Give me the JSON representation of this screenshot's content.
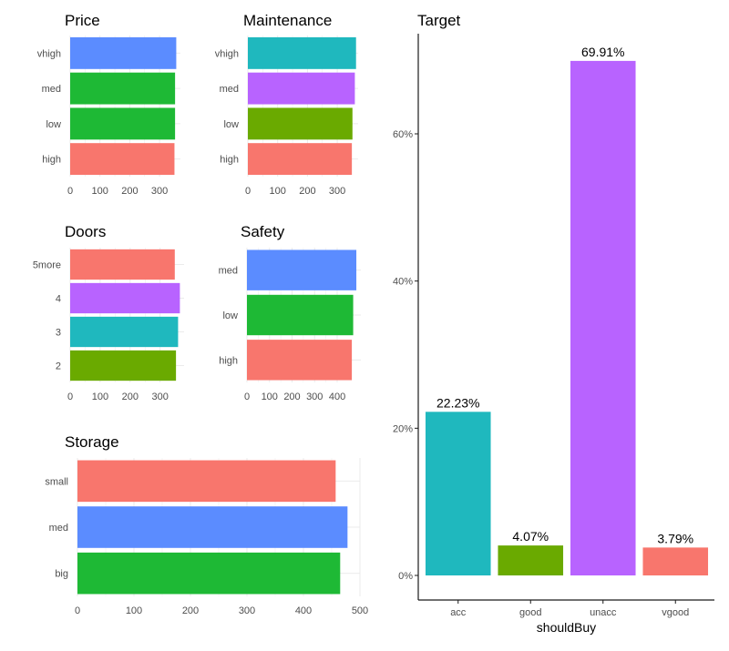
{
  "colors": {
    "red": "#F8766D",
    "green": "#1EB935",
    "blue": "#5B8CFF",
    "teal": "#1FB8BE",
    "purple": "#B863FF",
    "olive": "#6AAA00",
    "grid": "#EBEBEB",
    "axis": "#1A1A1A"
  },
  "chart_data": [
    {
      "id": "price",
      "type": "bar",
      "orientation": "horizontal",
      "title": "Price",
      "categories": [
        "high",
        "low",
        "med",
        "vhigh"
      ],
      "values": [
        350,
        352,
        352,
        356
      ],
      "fills": [
        "red",
        "green",
        "green",
        "blue"
      ],
      "xlim": [
        0,
        370
      ],
      "xticks": [
        0,
        100,
        200,
        300
      ],
      "xtick_labels": [
        "0",
        "100",
        "200",
        "300"
      ],
      "grid": true
    },
    {
      "id": "maintenance",
      "type": "bar",
      "orientation": "horizontal",
      "title": "Maintenance",
      "categories": [
        "high",
        "low",
        "med",
        "vhigh"
      ],
      "values": [
        349,
        351,
        359,
        363
      ],
      "fills": [
        "red",
        "olive",
        "purple",
        "teal"
      ],
      "xlim": [
        0,
        370
      ],
      "xticks": [
        0,
        100,
        200,
        300
      ],
      "xtick_labels": [
        "0",
        "100",
        "200",
        "300"
      ],
      "grid": true
    },
    {
      "id": "doors",
      "type": "bar",
      "orientation": "horizontal",
      "title": "Doors",
      "categories": [
        "2",
        "3",
        "4",
        "5more"
      ],
      "values": [
        353,
        360,
        366,
        349
      ],
      "fills": [
        "olive",
        "teal",
        "purple",
        "red"
      ],
      "xlim": [
        0,
        380
      ],
      "xticks": [
        0,
        100,
        200,
        300
      ],
      "xtick_labels": [
        "0",
        "100",
        "200",
        "300"
      ],
      "grid": true
    },
    {
      "id": "safety",
      "type": "bar",
      "orientation": "horizontal",
      "title": "Safety",
      "categories": [
        "high",
        "low",
        "med"
      ],
      "values": [
        465,
        471,
        485
      ],
      "fills": [
        "red",
        "green",
        "blue"
      ],
      "xlim": [
        0,
        505
      ],
      "xticks": [
        0,
        100,
        200,
        300,
        400
      ],
      "xtick_labels": [
        "0",
        "100",
        "200",
        "300",
        "400"
      ],
      "grid": true
    },
    {
      "id": "storage",
      "type": "bar",
      "orientation": "horizontal",
      "title": "Storage",
      "categories": [
        "big",
        "med",
        "small"
      ],
      "values": [
        465,
        478,
        457
      ],
      "fills": [
        "green",
        "blue",
        "red"
      ],
      "xlim": [
        0,
        500
      ],
      "xticks": [
        0,
        100,
        200,
        300,
        400,
        500
      ],
      "xtick_labels": [
        "0",
        "100",
        "200",
        "300",
        "400",
        "500"
      ],
      "grid": true
    },
    {
      "id": "target",
      "type": "bar",
      "orientation": "vertical",
      "title": "Target",
      "xlabel": "shouldBuy",
      "categories": [
        "acc",
        "good",
        "unacc",
        "vgood"
      ],
      "values": [
        22.23,
        4.07,
        69.91,
        3.79
      ],
      "data_labels": [
        "22.23%",
        "4.07%",
        "69.91%",
        "3.79%"
      ],
      "fills": [
        "teal",
        "olive",
        "purple",
        "red"
      ],
      "ylim": [
        0,
        73.5
      ],
      "yticks": [
        0,
        20,
        40,
        60
      ],
      "ytick_labels": [
        "0%",
        "20%",
        "40%",
        "60%"
      ],
      "grid": false
    }
  ]
}
